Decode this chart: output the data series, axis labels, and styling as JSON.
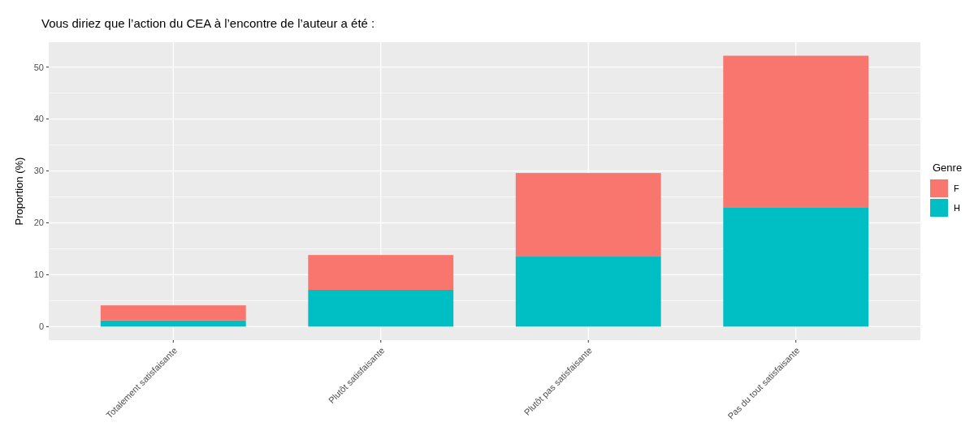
{
  "chart_data": {
    "type": "bar",
    "title": "Vous diriez que l’action du CEA à l’encontre de l’auteur a été :",
    "ylabel": "Proportion (%)",
    "legend_title": "Genre",
    "categories": [
      "Totalement satisfaisante",
      "Plutôt satisfaisante",
      "Plutôt pas satisfaisante",
      "Pas du tout satisfaisante"
    ],
    "stacked": true,
    "series": [
      {
        "name": "H",
        "color": "#00bfc4",
        "values": [
          1.2,
          7.1,
          13.5,
          22.9
        ]
      },
      {
        "name": "F",
        "color": "#f8766d",
        "values": [
          2.9,
          6.7,
          16.1,
          29.3
        ]
      }
    ],
    "ylim": [
      -2.6,
      54.8
    ],
    "yticks": [
      0,
      10,
      20,
      30,
      40,
      50
    ],
    "grid": true,
    "legend": "right"
  }
}
